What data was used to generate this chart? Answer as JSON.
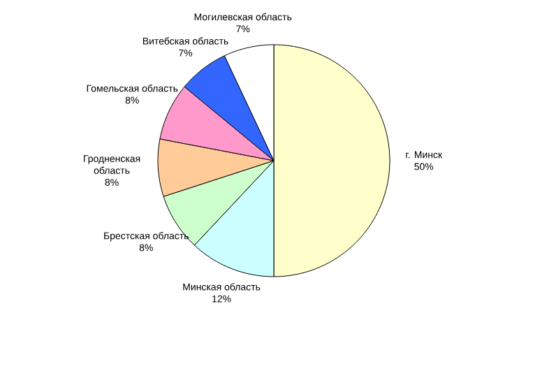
{
  "chart_data": {
    "type": "pie",
    "categories": [
      "г. Минск",
      "Минская область",
      "Брестская область",
      "Гродненская область",
      "Гомельская область",
      "Витебская область",
      "Могилевская область"
    ],
    "values": [
      50,
      12,
      8,
      8,
      8,
      7,
      7
    ],
    "value_labels": [
      "50%",
      "12%",
      "8%",
      "8%",
      "8%",
      "7%",
      "7%"
    ],
    "colors": [
      "#ffffcc",
      "#ccffff",
      "#ccffcc",
      "#ffcc99",
      "#ff99cc",
      "#3366ff",
      "#ffffff"
    ]
  }
}
